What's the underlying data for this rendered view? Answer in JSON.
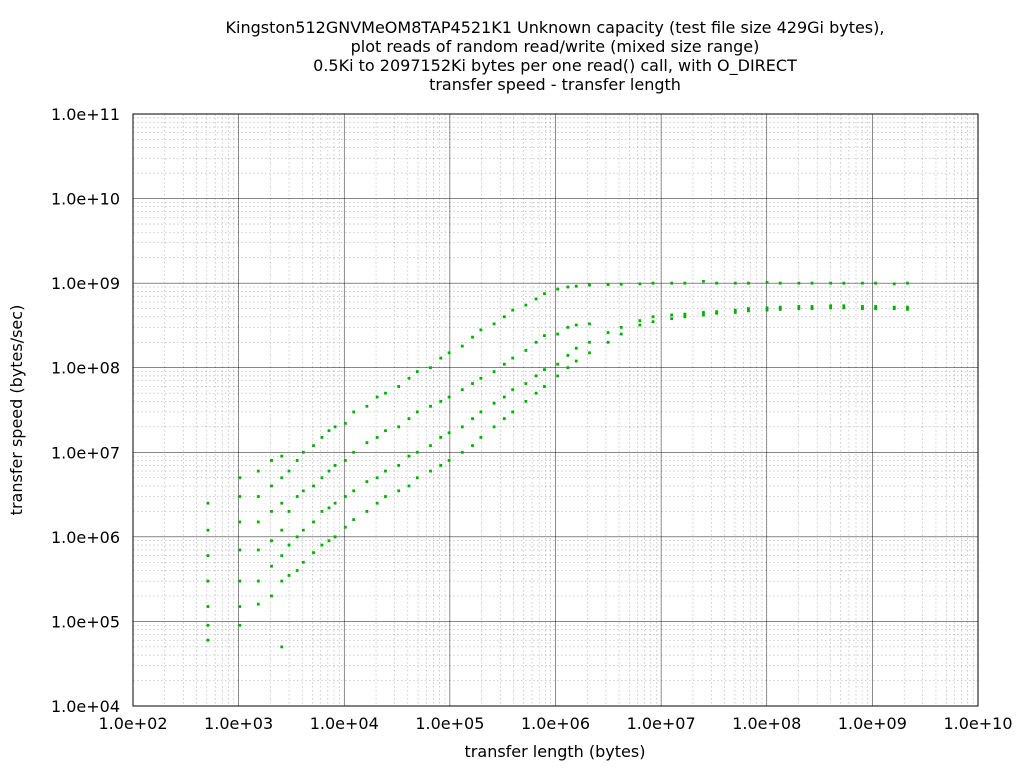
{
  "chart_data": {
    "type": "scatter",
    "title_lines": [
      "Kingston512GNVMeOM8TAP4521K1 Unknown capacity (test file size 429Gi bytes),",
      "plot reads of random read/write (mixed size range)",
      "0.5Ki to 2097152Ki bytes per one read() call, with O_DIRECT",
      "transfer speed - transfer length"
    ],
    "xlabel": "transfer length (bytes)",
    "ylabel": "transfer speed (bytes/sec)",
    "x_scale": "log",
    "y_scale": "log",
    "xlim": [
      100,
      10000000000
    ],
    "ylim": [
      10000,
      100000000000
    ],
    "x_ticks": [
      {
        "value": 100,
        "label": "1.0e+02"
      },
      {
        "value": 1000,
        "label": "1.0e+03"
      },
      {
        "value": 10000,
        "label": "1.0e+04"
      },
      {
        "value": 100000,
        "label": "1.0e+05"
      },
      {
        "value": 1000000,
        "label": "1.0e+06"
      },
      {
        "value": 10000000,
        "label": "1.0e+07"
      },
      {
        "value": 100000000,
        "label": "1.0e+08"
      },
      {
        "value": 1000000000,
        "label": "1.0e+09"
      },
      {
        "value": 10000000000,
        "label": "1.0e+10"
      }
    ],
    "y_ticks": [
      {
        "value": 10000,
        "label": "1.0e+04"
      },
      {
        "value": 100000,
        "label": "1.0e+05"
      },
      {
        "value": 1000000,
        "label": "1.0e+06"
      },
      {
        "value": 10000000,
        "label": "1.0e+07"
      },
      {
        "value": 100000000,
        "label": "1.0e+08"
      },
      {
        "value": 1000000000,
        "label": "1.0e+09"
      },
      {
        "value": 10000000000,
        "label": "1.0e+10"
      },
      {
        "value": 100000000000,
        "label": "1.0e+11"
      }
    ],
    "grid": true,
    "point_color": "#00b000",
    "series": [
      {
        "points": [
          [
            512,
            60000
          ],
          [
            512,
            90000
          ],
          [
            512,
            150000
          ],
          [
            512,
            300000
          ],
          [
            512,
            600000
          ],
          [
            512,
            1200000
          ],
          [
            512,
            2500000
          ],
          [
            1024,
            90000
          ],
          [
            1024,
            150000
          ],
          [
            1024,
            300000
          ],
          [
            1024,
            700000
          ],
          [
            1024,
            1500000
          ],
          [
            1024,
            3000000
          ],
          [
            1024,
            5000000
          ],
          [
            1536,
            160000
          ],
          [
            1536,
            300000
          ],
          [
            1536,
            700000
          ],
          [
            1536,
            1500000
          ],
          [
            1536,
            3000000
          ],
          [
            1536,
            6000000
          ],
          [
            2048,
            200000
          ],
          [
            2048,
            450000
          ],
          [
            2048,
            900000
          ],
          [
            2048,
            2000000
          ],
          [
            2048,
            4000000
          ],
          [
            2048,
            8000000
          ],
          [
            2560,
            50000
          ],
          [
            2560,
            300000
          ],
          [
            2560,
            600000
          ],
          [
            2560,
            1200000
          ],
          [
            2560,
            2500000
          ],
          [
            2560,
            5000000
          ],
          [
            2560,
            9000000
          ],
          [
            3000,
            350000
          ],
          [
            3000,
            800000
          ],
          [
            3000,
            2000000
          ],
          [
            3000,
            6000000
          ],
          [
            3584,
            400000
          ],
          [
            3584,
            1000000
          ],
          [
            3584,
            3000000
          ],
          [
            3584,
            8000000
          ],
          [
            4096,
            500000
          ],
          [
            4096,
            1200000
          ],
          [
            4096,
            3500000
          ],
          [
            4096,
            10000000
          ],
          [
            5120,
            650000
          ],
          [
            5120,
            1500000
          ],
          [
            5120,
            4000000
          ],
          [
            5120,
            12000000
          ],
          [
            6144,
            800000
          ],
          [
            6144,
            2000000
          ],
          [
            6144,
            5000000
          ],
          [
            6144,
            15000000
          ],
          [
            7168,
            900000
          ],
          [
            7168,
            2200000
          ],
          [
            7168,
            6000000
          ],
          [
            7168,
            18000000
          ],
          [
            8192,
            1000000
          ],
          [
            8192,
            2500000
          ],
          [
            8192,
            7000000
          ],
          [
            8192,
            20000000
          ],
          [
            10240,
            1300000
          ],
          [
            10240,
            3000000
          ],
          [
            10240,
            8000000
          ],
          [
            10240,
            22000000
          ],
          [
            12288,
            1600000
          ],
          [
            12288,
            3500000
          ],
          [
            12288,
            10000000
          ],
          [
            12288,
            30000000
          ],
          [
            16384,
            2000000
          ],
          [
            16384,
            4500000
          ],
          [
            16384,
            13000000
          ],
          [
            16384,
            35000000
          ],
          [
            20480,
            2500000
          ],
          [
            20480,
            5000000
          ],
          [
            20480,
            15000000
          ],
          [
            20480,
            45000000
          ],
          [
            24576,
            3000000
          ],
          [
            24576,
            6000000
          ],
          [
            24576,
            18000000
          ],
          [
            24576,
            50000000
          ],
          [
            32768,
            3500000
          ],
          [
            32768,
            7000000
          ],
          [
            32768,
            20000000
          ],
          [
            32768,
            60000000
          ],
          [
            40960,
            4000000
          ],
          [
            40960,
            9000000
          ],
          [
            40960,
            25000000
          ],
          [
            40960,
            75000000
          ],
          [
            49152,
            5000000
          ],
          [
            49152,
            10000000
          ],
          [
            49152,
            30000000
          ],
          [
            49152,
            90000000
          ],
          [
            65536,
            6000000
          ],
          [
            65536,
            12000000
          ],
          [
            65536,
            35000000
          ],
          [
            65536,
            100000000
          ],
          [
            81920,
            7000000
          ],
          [
            81920,
            15000000
          ],
          [
            81920,
            40000000
          ],
          [
            81920,
            130000000
          ],
          [
            98304,
            8000000
          ],
          [
            98304,
            17000000
          ],
          [
            98304,
            45000000
          ],
          [
            98304,
            150000000
          ],
          [
            131072,
            10000000
          ],
          [
            131072,
            20000000
          ],
          [
            131072,
            55000000
          ],
          [
            131072,
            180000000
          ],
          [
            163840,
            12000000
          ],
          [
            163840,
            25000000
          ],
          [
            163840,
            65000000
          ],
          [
            163840,
            230000000
          ],
          [
            196608,
            15000000
          ],
          [
            196608,
            30000000
          ],
          [
            196608,
            75000000
          ],
          [
            196608,
            280000000
          ],
          [
            262144,
            20000000
          ],
          [
            262144,
            38000000
          ],
          [
            262144,
            90000000
          ],
          [
            262144,
            330000000
          ],
          [
            327680,
            25000000
          ],
          [
            327680,
            45000000
          ],
          [
            327680,
            110000000
          ],
          [
            327680,
            400000000
          ],
          [
            393216,
            30000000
          ],
          [
            393216,
            55000000
          ],
          [
            393216,
            130000000
          ],
          [
            393216,
            480000000
          ],
          [
            524288,
            40000000
          ],
          [
            524288,
            65000000
          ],
          [
            524288,
            160000000
          ],
          [
            524288,
            550000000
          ],
          [
            655360,
            50000000
          ],
          [
            655360,
            80000000
          ],
          [
            655360,
            200000000
          ],
          [
            655360,
            650000000
          ],
          [
            786432,
            60000000
          ],
          [
            786432,
            95000000
          ],
          [
            786432,
            240000000
          ],
          [
            786432,
            750000000
          ],
          [
            1048576,
            80000000
          ],
          [
            1048576,
            110000000
          ],
          [
            1048576,
            250000000
          ],
          [
            1048576,
            850000000
          ],
          [
            1310720,
            100000000
          ],
          [
            1310720,
            140000000
          ],
          [
            1310720,
            300000000
          ],
          [
            1310720,
            900000000
          ],
          [
            1572864,
            120000000
          ],
          [
            1572864,
            170000000
          ],
          [
            1572864,
            320000000
          ],
          [
            1572864,
            920000000
          ],
          [
            2097152,
            150000000
          ],
          [
            2097152,
            200000000
          ],
          [
            2097152,
            330000000
          ],
          [
            2097152,
            950000000
          ],
          [
            3145728,
            200000000
          ],
          [
            3145728,
            260000000
          ],
          [
            3145728,
            960000000
          ],
          [
            4194304,
            250000000
          ],
          [
            4194304,
            300000000
          ],
          [
            4194304,
            970000000
          ],
          [
            6291456,
            320000000
          ],
          [
            6291456,
            360000000
          ],
          [
            6291456,
            980000000
          ],
          [
            8388608,
            350000000
          ],
          [
            8388608,
            400000000
          ],
          [
            8388608,
            1000000000
          ],
          [
            12582912,
            380000000
          ],
          [
            12582912,
            420000000
          ],
          [
            12582912,
            1000000000
          ],
          [
            16777216,
            400000000
          ],
          [
            16777216,
            430000000
          ],
          [
            16777216,
            1000000000
          ],
          [
            25165824,
            420000000
          ],
          [
            25165824,
            450000000
          ],
          [
            25165824,
            1050000000
          ],
          [
            33554432,
            440000000
          ],
          [
            33554432,
            460000000
          ],
          [
            33554432,
            1000000000
          ],
          [
            50331648,
            450000000
          ],
          [
            50331648,
            480000000
          ],
          [
            50331648,
            1000000000
          ],
          [
            67108864,
            470000000
          ],
          [
            67108864,
            500000000
          ],
          [
            67108864,
            1000000000
          ],
          [
            100663296,
            480000000
          ],
          [
            100663296,
            510000000
          ],
          [
            100663296,
            1020000000
          ],
          [
            134217728,
            490000000
          ],
          [
            134217728,
            520000000
          ],
          [
            134217728,
            1000000000
          ],
          [
            201326592,
            500000000
          ],
          [
            201326592,
            530000000
          ],
          [
            201326592,
            1000000000
          ],
          [
            268435456,
            500000000
          ],
          [
            268435456,
            530000000
          ],
          [
            268435456,
            1000000000
          ],
          [
            402653184,
            510000000
          ],
          [
            402653184,
            540000000
          ],
          [
            402653184,
            1000000000
          ],
          [
            536870912,
            510000000
          ],
          [
            536870912,
            540000000
          ],
          [
            536870912,
            1000000000
          ],
          [
            805306368,
            500000000
          ],
          [
            805306368,
            530000000
          ],
          [
            805306368,
            1000000000
          ],
          [
            1073741824,
            500000000
          ],
          [
            1073741824,
            530000000
          ],
          [
            1073741824,
            1000000000
          ],
          [
            1610612736,
            500000000
          ],
          [
            1610612736,
            520000000
          ],
          [
            1610612736,
            980000000
          ],
          [
            2147483648,
            490000000
          ],
          [
            2147483648,
            520000000
          ],
          [
            2147483648,
            1000000000
          ]
        ]
      }
    ]
  }
}
